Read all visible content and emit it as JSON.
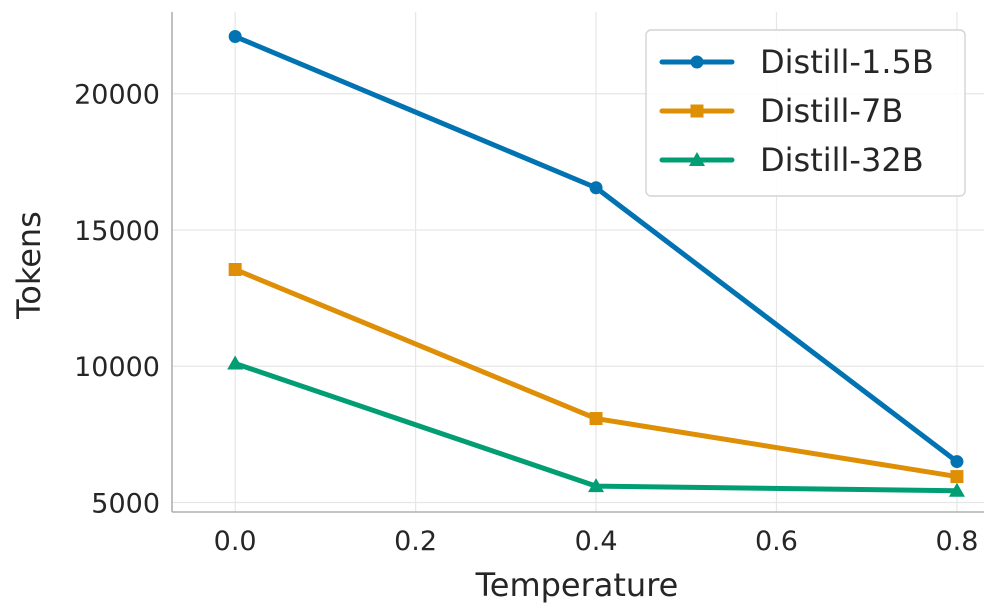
{
  "chart_data": {
    "type": "line",
    "xlabel": "Temperature",
    "ylabel": "Tokens",
    "x": [
      0.0,
      0.4,
      0.8
    ],
    "x_ticks": [
      0.0,
      0.2,
      0.4,
      0.6,
      0.8
    ],
    "x_tick_labels": [
      "0.0",
      "0.2",
      "0.4",
      "0.6",
      "0.8"
    ],
    "y_ticks": [
      5000,
      10000,
      15000,
      20000
    ],
    "y_tick_labels": [
      "5000",
      "10000",
      "15000",
      "20000"
    ],
    "xlim": [
      -0.07,
      0.83
    ],
    "ylim": [
      4650,
      23000
    ],
    "grid": true,
    "legend_position": "top-right",
    "series": [
      {
        "name": "Distill-1.5B",
        "values": [
          22100,
          16550,
          6500
        ],
        "color": "#0173b2",
        "marker": "circle"
      },
      {
        "name": "Distill-7B",
        "values": [
          13550,
          8080,
          5950
        ],
        "color": "#de8f05",
        "marker": "square"
      },
      {
        "name": "Distill-32B",
        "values": [
          10100,
          5600,
          5430
        ],
        "color": "#029e73",
        "marker": "triangle"
      }
    ]
  }
}
